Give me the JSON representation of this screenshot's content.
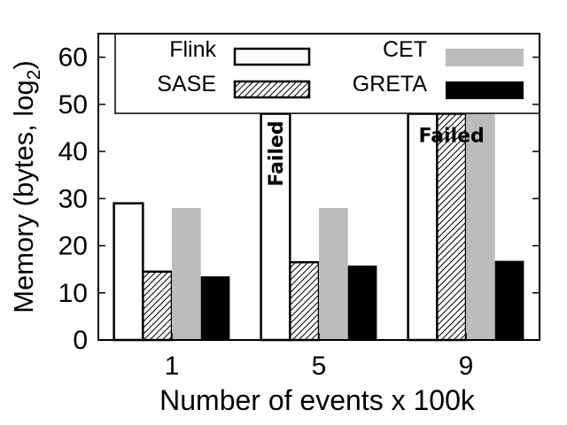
{
  "chart_data": {
    "type": "bar",
    "xlabel": "Number of events x 100k",
    "ylabel": "Memory (bytes, log",
    "ylabel_sub": "2",
    "ylabel_close": ")",
    "ylim": [
      0,
      65
    ],
    "yticks": [
      0,
      10,
      20,
      30,
      40,
      50,
      60
    ],
    "categories": [
      "1",
      "5",
      "9"
    ],
    "grid": false,
    "legend_position": "top",
    "series": [
      {
        "name": "Flink",
        "values": [
          29,
          48,
          48
        ],
        "failed": [
          false,
          true,
          true
        ]
      },
      {
        "name": "SASE",
        "values": [
          14.5,
          16.5,
          48
        ],
        "failed": [
          false,
          false,
          true
        ]
      },
      {
        "name": "CET",
        "values": [
          28,
          28,
          48
        ],
        "failed": [
          false,
          false,
          true
        ]
      },
      {
        "name": "GRETA",
        "values": [
          13.5,
          15.8,
          16.8
        ],
        "failed": [
          false,
          false,
          false
        ]
      }
    ],
    "colors": {
      "Flink": "#ffffff",
      "SASE": "hatch",
      "CET": "#bcbcbc",
      "GRETA": "#000000"
    },
    "annotations": [
      {
        "text": "Failed",
        "category": "5",
        "series": "Flink",
        "orientation": "vertical"
      },
      {
        "text": "Failed",
        "category": "9",
        "series": "SASE",
        "orientation": "horizontal"
      }
    ]
  }
}
